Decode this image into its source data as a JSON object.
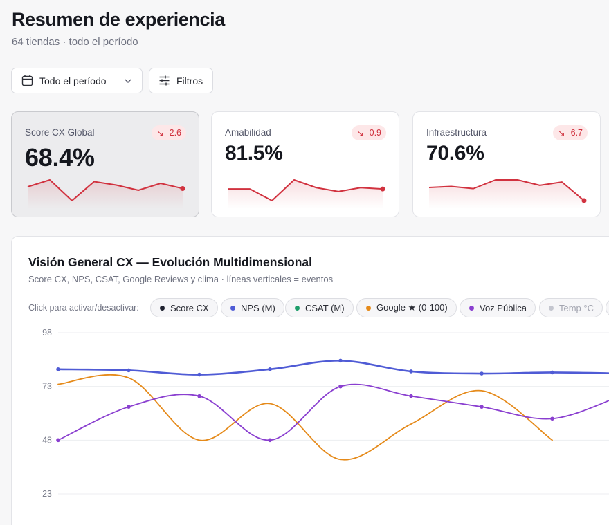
{
  "header": {
    "title": "Resumen de experiencia",
    "subtitle": "64 tiendas · todo el período"
  },
  "toolbar": {
    "period_label": "Todo el período",
    "filters_label": "Filtros"
  },
  "kpis": [
    {
      "label": "Score CX Global",
      "value": "68.4%",
      "delta": "-2.6",
      "selected": true,
      "trend": [
        2,
        6,
        -6,
        5,
        3,
        0,
        4,
        1
      ]
    },
    {
      "label": "Amabilidad",
      "value": "81.5%",
      "delta": "-0.9",
      "selected": false,
      "trend": [
        5,
        5,
        -4,
        12,
        6,
        3,
        6,
        5
      ]
    },
    {
      "label": "Infraestructura",
      "value": "70.6%",
      "delta": "-6.7",
      "selected": false,
      "trend": [
        3,
        4,
        2,
        10,
        10,
        5,
        8,
        -9
      ]
    }
  ],
  "panel": {
    "title": "Visión General CX — Evolución Multidimensional",
    "subtitle": "Score CX, NPS, CSAT, Google Reviews y clima · líneas verticales = eventos",
    "toggle_hint": "Click para activar/desactivar:"
  },
  "legend": [
    {
      "label": "Score CX",
      "color": "#1f2230",
      "active": true
    },
    {
      "label": "NPS (M)",
      "color": "#4f5bd5",
      "active": true
    },
    {
      "label": "CSAT (M)",
      "color": "#1e9e6a",
      "active": true
    },
    {
      "label": "Google ★ (0-100)",
      "color": "#e58a1a",
      "active": true
    },
    {
      "label": "Voz Pública",
      "color": "#8a3fd0",
      "active": true
    },
    {
      "label": "Temp °C",
      "color": "#c4c6cf",
      "active": false
    }
  ],
  "colors": {
    "accent_red": "#d1323f",
    "nps": "#4f5bd5",
    "google": "#e58a1a",
    "voz": "#8a3fd0"
  },
  "chart_data": {
    "type": "line",
    "y_ticks": [
      98,
      73,
      48,
      23
    ],
    "ylim": [
      23,
      98
    ],
    "grid": true,
    "series": [
      {
        "name": "NPS (M)",
        "color": "#4f5bd5",
        "markers": true,
        "values": [
          81,
          80.5,
          78.5,
          81,
          85,
          80,
          79,
          79.5,
          79
        ]
      },
      {
        "name": "Google ★ (0-100)",
        "color": "#e58a1a",
        "markers": false,
        "values": [
          74,
          77,
          48,
          65,
          39,
          55.5,
          71,
          48
        ]
      },
      {
        "name": "Voz Pública",
        "color": "#8a3fd0",
        "markers": true,
        "values": [
          48,
          63.5,
          68.5,
          48,
          73,
          68.5,
          63.5,
          58,
          69
        ]
      }
    ]
  }
}
